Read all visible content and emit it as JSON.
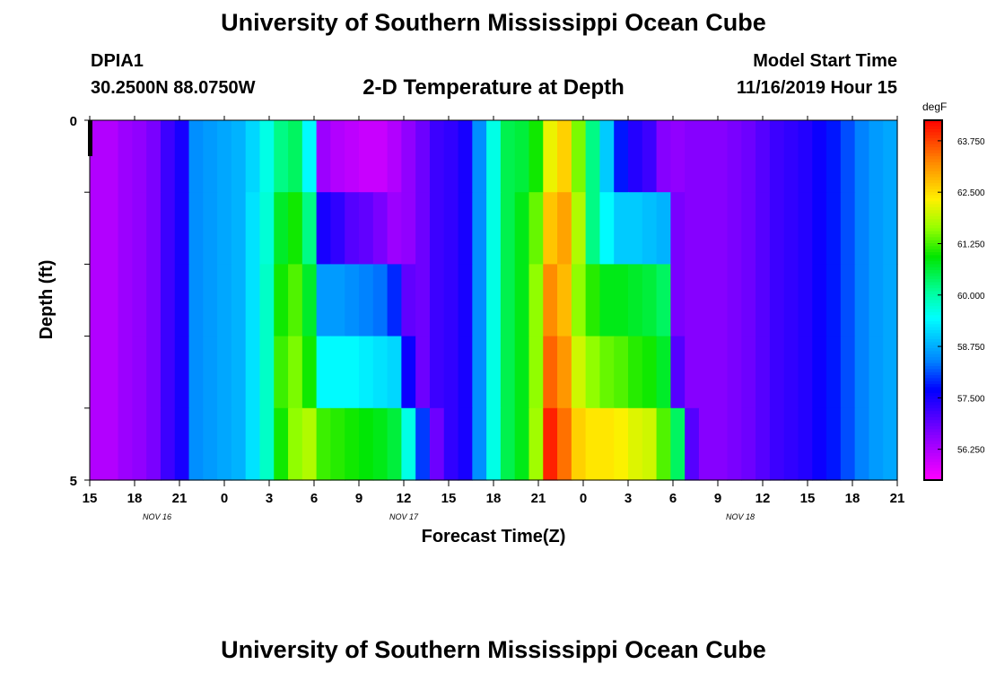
{
  "header": {
    "title": "University of Southern Mississippi Ocean Cube",
    "station": "DPIA1",
    "coords": "30.2500N 88.0750W",
    "subtitle": "2-D Temperature at Depth",
    "start_label": "Model Start Time",
    "start_time": "11/16/2019 Hour 15"
  },
  "footer": {
    "title": "University of Southern Mississippi Ocean Cube"
  },
  "chart_data": {
    "type": "heatmap",
    "title": "2-D Temperature at Depth",
    "xlabel": "Forecast Time(Z)",
    "ylabel": "Depth (ft)",
    "x_hours_since_start": [
      0,
      57
    ],
    "x_ticks": [
      "15",
      "18",
      "21",
      "0",
      "3",
      "6",
      "9",
      "12",
      "15",
      "18",
      "21",
      "0",
      "3",
      "6",
      "9",
      "12",
      "15",
      "18",
      "21"
    ],
    "date_labels": [
      {
        "label": "NOV 16",
        "tick_index": 1.5
      },
      {
        "label": "NOV 17",
        "tick_index": 7
      },
      {
        "label": "NOV 18",
        "tick_index": 14.5
      }
    ],
    "y_ticks": [
      "0",
      "",
      "",
      "",
      "",
      "5"
    ],
    "ylim": [
      0,
      5
    ],
    "colorbar": {
      "unit": "degF",
      "range": [
        55.5,
        64.25
      ],
      "ticks": [
        "63.750",
        "62.500",
        "61.250",
        "60.000",
        "58.750",
        "57.500",
        "56.250"
      ]
    },
    "depth_rows": [
      0.5,
      1.5,
      2.5,
      3.5,
      4.5
    ],
    "values": [
      [
        56.2,
        56.2,
        56.4,
        56.5,
        56.7,
        57.2,
        57.5,
        58.5,
        58.6,
        58.7,
        58.8,
        59.1,
        59.6,
        60.2,
        60.4,
        59.4,
        56.4,
        56.2,
        56.1,
        56.0,
        56.0,
        56.2,
        56.5,
        56.8,
        57.2,
        57.3,
        57.5,
        58.5,
        59.6,
        60.5,
        60.6,
        61.0,
        62.2,
        62.6,
        61.5,
        60.2,
        59.0,
        57.8,
        57.4,
        57.2,
        56.6,
        56.5,
        56.6,
        56.6,
        56.6,
        56.7,
        56.8,
        57.0,
        57.2,
        57.3,
        57.4,
        57.6,
        57.8,
        58.1,
        58.4,
        58.6,
        58.7
      ],
      [
        56.2,
        56.2,
        56.4,
        56.5,
        56.7,
        57.2,
        57.5,
        58.5,
        58.6,
        58.7,
        58.8,
        59.2,
        59.7,
        60.7,
        61.0,
        60.2,
        57.5,
        57.3,
        57.0,
        56.9,
        56.7,
        56.4,
        56.5,
        56.8,
        57.2,
        57.3,
        57.5,
        58.5,
        59.6,
        60.5,
        60.8,
        61.4,
        62.7,
        63.0,
        61.8,
        60.2,
        59.4,
        59.0,
        59.0,
        58.9,
        58.8,
        56.7,
        56.6,
        56.6,
        56.6,
        56.7,
        56.8,
        57.0,
        57.2,
        57.3,
        57.4,
        57.6,
        57.8,
        58.1,
        58.4,
        58.6,
        58.7
      ],
      [
        56.2,
        56.2,
        56.4,
        56.5,
        56.7,
        57.2,
        57.5,
        58.5,
        58.6,
        58.7,
        58.8,
        59.2,
        59.8,
        61.0,
        61.3,
        60.7,
        58.6,
        58.6,
        58.5,
        58.4,
        58.3,
        57.9,
        56.9,
        56.8,
        57.2,
        57.3,
        57.5,
        58.5,
        59.6,
        60.5,
        60.8,
        61.6,
        63.2,
        62.8,
        61.6,
        61.1,
        60.8,
        60.8,
        60.7,
        60.6,
        60.4,
        56.7,
        56.6,
        56.6,
        56.6,
        56.7,
        56.8,
        57.0,
        57.2,
        57.3,
        57.4,
        57.6,
        57.8,
        58.1,
        58.4,
        58.6,
        58.7
      ],
      [
        56.2,
        56.2,
        56.4,
        56.5,
        56.7,
        57.2,
        57.5,
        58.5,
        58.6,
        58.7,
        58.8,
        59.2,
        59.8,
        61.2,
        61.5,
        61.0,
        59.4,
        59.4,
        59.4,
        59.3,
        59.2,
        59.1,
        57.6,
        56.8,
        57.2,
        57.3,
        57.5,
        58.5,
        59.6,
        60.5,
        60.8,
        61.6,
        63.5,
        63.1,
        62.0,
        61.6,
        61.4,
        61.3,
        61.1,
        61.0,
        60.7,
        57.0,
        56.6,
        56.6,
        56.6,
        56.7,
        56.8,
        57.0,
        57.2,
        57.3,
        57.4,
        57.6,
        57.8,
        58.1,
        58.4,
        58.6,
        58.7
      ],
      [
        56.2,
        56.2,
        56.4,
        56.5,
        56.7,
        57.2,
        57.5,
        58.5,
        58.6,
        58.7,
        58.8,
        59.2,
        59.8,
        61.0,
        61.6,
        61.8,
        61.2,
        61.1,
        61.0,
        60.9,
        60.8,
        60.6,
        59.6,
        58.0,
        56.8,
        57.3,
        57.5,
        58.5,
        59.6,
        60.5,
        60.8,
        61.7,
        64.0,
        63.4,
        62.6,
        62.4,
        62.4,
        62.3,
        62.1,
        62.0,
        61.3,
        60.4,
        57.0,
        56.6,
        56.6,
        56.7,
        56.8,
        57.0,
        57.2,
        57.3,
        57.4,
        57.6,
        57.8,
        58.1,
        58.4,
        58.6,
        58.7
      ]
    ]
  }
}
